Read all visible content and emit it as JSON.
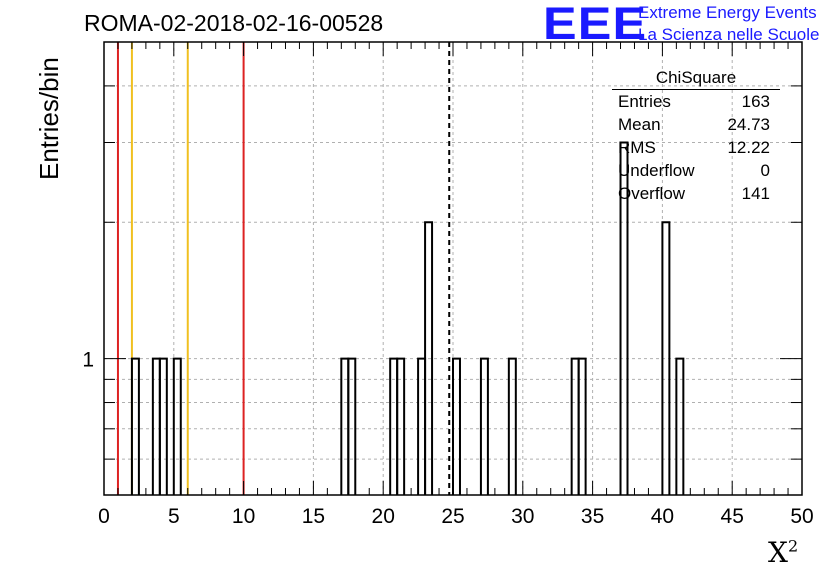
{
  "header": {
    "title": "ROMA-02-2018-02-16-00528"
  },
  "logo": {
    "mark": "EEE",
    "line1": "Extreme Energy Events",
    "line2": "La Scienza nelle Scuole",
    "color": "#1a1aff"
  },
  "stats_box": {
    "title": "ChiSquare",
    "rows": [
      {
        "key": "Entries",
        "value": "163"
      },
      {
        "key": "Mean",
        "value": "24.73"
      },
      {
        "key": "RMS",
        "value": "12.22"
      },
      {
        "key": "Underflow",
        "value": "0"
      },
      {
        "key": "Overflow",
        "value": "141"
      }
    ]
  },
  "chart_data": {
    "type": "bar",
    "style": "step-histogram",
    "title": "ROMA-02-2018-02-16-00528",
    "xlabel": "X",
    "xlabel_superscript": "2",
    "ylabel": "Entries/bin",
    "xlim": [
      0,
      50
    ],
    "ylim": [
      0.5,
      5
    ],
    "yscale": "log",
    "bin_width": 0.5,
    "xticks": [
      0,
      5,
      10,
      15,
      20,
      25,
      30,
      35,
      40,
      45,
      50
    ],
    "yticks": [
      1
    ],
    "grid": true,
    "bins": [
      {
        "x": 2.0,
        "value": 1
      },
      {
        "x": 3.5,
        "value": 1
      },
      {
        "x": 4.0,
        "value": 1
      },
      {
        "x": 5.0,
        "value": 1
      },
      {
        "x": 17.0,
        "value": 1
      },
      {
        "x": 17.5,
        "value": 1
      },
      {
        "x": 20.5,
        "value": 1
      },
      {
        "x": 21.0,
        "value": 1
      },
      {
        "x": 22.5,
        "value": 1
      },
      {
        "x": 23.0,
        "value": 2
      },
      {
        "x": 25.0,
        "value": 1
      },
      {
        "x": 27.0,
        "value": 1
      },
      {
        "x": 29.0,
        "value": 1
      },
      {
        "x": 33.5,
        "value": 1
      },
      {
        "x": 34.0,
        "value": 1
      },
      {
        "x": 37.0,
        "value": 3
      },
      {
        "x": 40.0,
        "value": 2
      },
      {
        "x": 41.0,
        "value": 1
      }
    ],
    "vertical_lines": [
      {
        "x": 1.0,
        "color": "#dd2222",
        "style": "solid"
      },
      {
        "x": 2.0,
        "color": "#f0c020",
        "style": "solid"
      },
      {
        "x": 6.0,
        "color": "#f0c020",
        "style": "solid"
      },
      {
        "x": 10.0,
        "color": "#dd2222",
        "style": "solid"
      },
      {
        "x": 24.73,
        "color": "#000000",
        "style": "dashed"
      }
    ]
  }
}
